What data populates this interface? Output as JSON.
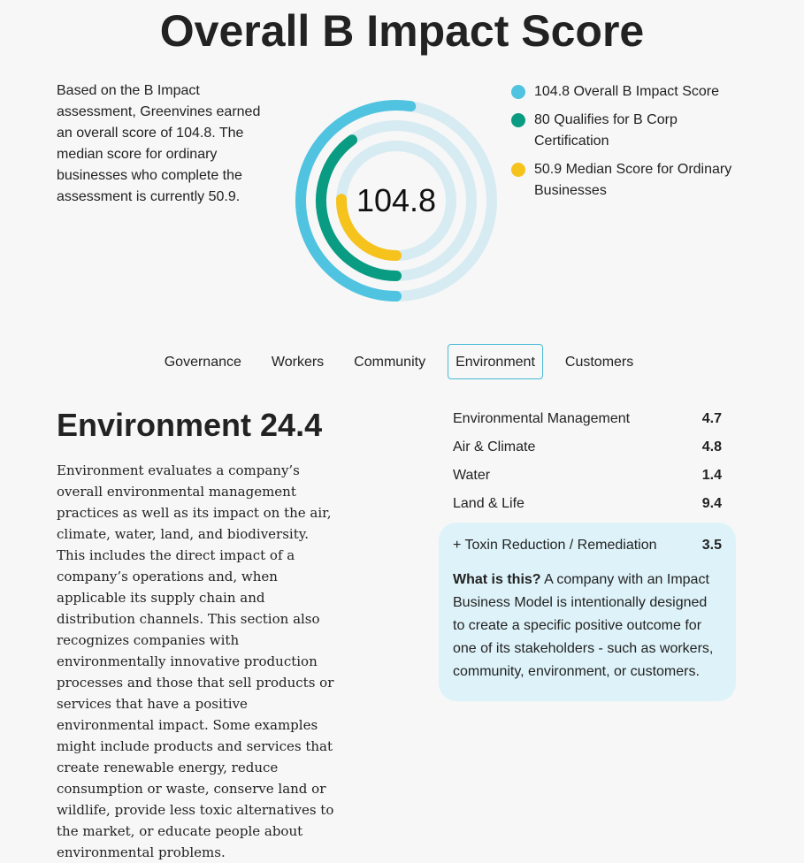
{
  "page": {
    "title": "Overall B Impact Score",
    "intro": "Based on the B Impact assessment, Greenvines earned an overall score of 104.8. The median score for ordinary businesses who complete the assessment is currently 50.9."
  },
  "ring": {
    "center_value": "104.8",
    "max_score": 200,
    "track_color": "#d7ebf2",
    "series": [
      {
        "value": 104.8,
        "color": "#4fc3df"
      },
      {
        "value": 80,
        "color": "#0a9c82"
      },
      {
        "value": 50.9,
        "color": "#f6c21c"
      }
    ]
  },
  "legend": [
    {
      "label": "104.8 Overall B Impact Score",
      "color": "#4fc3df"
    },
    {
      "label": "80 Qualifies for B Corp Certification",
      "color": "#0a9c82"
    },
    {
      "label": "50.9 Median Score for Ordinary Businesses",
      "color": "#f6c21c"
    }
  ],
  "tabs": [
    {
      "label": "Governance",
      "active": false
    },
    {
      "label": "Workers",
      "active": false
    },
    {
      "label": "Community",
      "active": false
    },
    {
      "label": "Environment",
      "active": true
    },
    {
      "label": "Customers",
      "active": false
    }
  ],
  "environment": {
    "heading": "Environment 24.4",
    "description": "Environment evaluates a company’s overall environmental management practices as well as its impact on the air, climate, water, land, and biodiversity. This includes the direct impact of a company’s operations and, when applicable its supply chain and distribution channels. This section also recognizes companies with environmentally innovative production processes and those that sell products or services that have a positive environmental impact. Some examples might include products and services that create renewable energy, reduce consumption or waste, conserve land or wildlife, provide less toxic alternatives to the market, or educate people about environmental problems.",
    "scores": [
      {
        "label": "Environmental Management",
        "value": "4.7"
      },
      {
        "label": "Air & Climate",
        "value": "4.8"
      },
      {
        "label": "Water",
        "value": "1.4"
      },
      {
        "label": "Land & Life",
        "value": "9.4"
      }
    ],
    "impact_model": {
      "label": "+ Toxin Reduction / Remediation",
      "value": "3.5",
      "what_label": "What is this?",
      "what_text": " A company with an Impact Business Model is intentionally designed to create a specific positive outcome for one of its stakeholders - such as workers, community, environment, or customers."
    }
  }
}
